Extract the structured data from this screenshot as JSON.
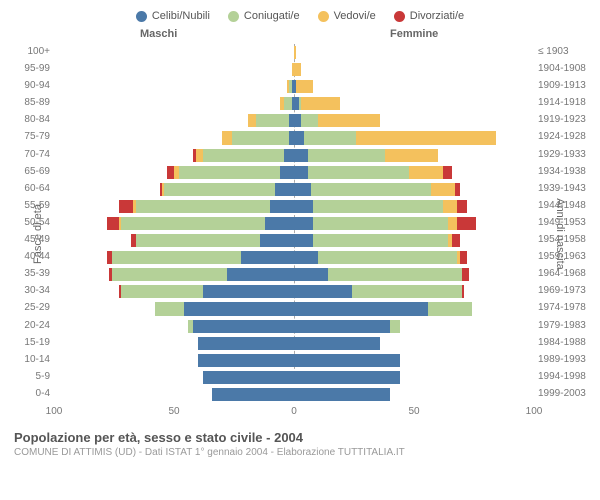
{
  "legend": {
    "items": [
      {
        "label": "Celibi/Nubili",
        "color": "#4b79a8"
      },
      {
        "label": "Coniugati/e",
        "color": "#b4d198"
      },
      {
        "label": "Vedovi/e",
        "color": "#f4c15d"
      },
      {
        "label": "Divorziati/e",
        "color": "#c93838"
      }
    ]
  },
  "headers": {
    "male": "Maschi",
    "female": "Femmine"
  },
  "axis": {
    "left_label": "Fasce di età",
    "right_label": "Anni di nascita",
    "xmax": 100,
    "xticks": [
      100,
      50,
      0,
      50,
      100
    ]
  },
  "colors": {
    "single": "#4b79a8",
    "married": "#b4d198",
    "widowed": "#f4c15d",
    "divorced": "#c93838",
    "grid": "#ffffff",
    "centerline": "#aaaaaa",
    "text": "#777777",
    "bg": "#ffffff"
  },
  "footer": {
    "title": "Popolazione per età, sesso e stato civile - 2004",
    "subtitle": "COMUNE DI ATTIMIS (UD) - Dati ISTAT 1° gennaio 2004 - Elaborazione TUTTITALIA.IT"
  },
  "rows": [
    {
      "age": "100+",
      "birth": "≤ 1903",
      "m": {
        "s": 0,
        "c": 0,
        "w": 0,
        "d": 0
      },
      "f": {
        "s": 0,
        "c": 0,
        "w": 1,
        "d": 0
      }
    },
    {
      "age": "95-99",
      "birth": "1904-1908",
      "m": {
        "s": 0,
        "c": 0,
        "w": 1,
        "d": 0
      },
      "f": {
        "s": 0,
        "c": 0,
        "w": 3,
        "d": 0
      }
    },
    {
      "age": "90-94",
      "birth": "1909-1913",
      "m": {
        "s": 1,
        "c": 1,
        "w": 1,
        "d": 0
      },
      "f": {
        "s": 1,
        "c": 0,
        "w": 7,
        "d": 0
      }
    },
    {
      "age": "85-89",
      "birth": "1914-1918",
      "m": {
        "s": 1,
        "c": 3,
        "w": 2,
        "d": 0
      },
      "f": {
        "s": 2,
        "c": 1,
        "w": 16,
        "d": 0
      }
    },
    {
      "age": "80-84",
      "birth": "1919-1923",
      "m": {
        "s": 2,
        "c": 14,
        "w": 3,
        "d": 0
      },
      "f": {
        "s": 3,
        "c": 7,
        "w": 26,
        "d": 0
      }
    },
    {
      "age": "75-79",
      "birth": "1924-1928",
      "m": {
        "s": 2,
        "c": 24,
        "w": 4,
        "d": 0
      },
      "f": {
        "s": 4,
        "c": 22,
        "w": 58,
        "d": 0
      }
    },
    {
      "age": "70-74",
      "birth": "1929-1933",
      "m": {
        "s": 4,
        "c": 34,
        "w": 3,
        "d": 1
      },
      "f": {
        "s": 6,
        "c": 32,
        "w": 22,
        "d": 0
      }
    },
    {
      "age": "65-69",
      "birth": "1934-1938",
      "m": {
        "s": 6,
        "c": 42,
        "w": 2,
        "d": 3
      },
      "f": {
        "s": 6,
        "c": 42,
        "w": 14,
        "d": 4
      }
    },
    {
      "age": "60-64",
      "birth": "1939-1943",
      "m": {
        "s": 8,
        "c": 46,
        "w": 1,
        "d": 1
      },
      "f": {
        "s": 7,
        "c": 50,
        "w": 10,
        "d": 2
      }
    },
    {
      "age": "55-59",
      "birth": "1944-1948",
      "m": {
        "s": 10,
        "c": 56,
        "w": 1,
        "d": 6
      },
      "f": {
        "s": 8,
        "c": 54,
        "w": 6,
        "d": 4
      }
    },
    {
      "age": "50-54",
      "birth": "1949-1953",
      "m": {
        "s": 12,
        "c": 60,
        "w": 1,
        "d": 5
      },
      "f": {
        "s": 8,
        "c": 56,
        "w": 4,
        "d": 8
      }
    },
    {
      "age": "45-49",
      "birth": "1954-1958",
      "m": {
        "s": 14,
        "c": 52,
        "w": 0,
        "d": 2
      },
      "f": {
        "s": 8,
        "c": 56,
        "w": 2,
        "d": 3
      }
    },
    {
      "age": "40-44",
      "birth": "1959-1963",
      "m": {
        "s": 22,
        "c": 54,
        "w": 0,
        "d": 2
      },
      "f": {
        "s": 10,
        "c": 58,
        "w": 1,
        "d": 3
      }
    },
    {
      "age": "35-39",
      "birth": "1964-1968",
      "m": {
        "s": 28,
        "c": 48,
        "w": 0,
        "d": 1
      },
      "f": {
        "s": 14,
        "c": 56,
        "w": 0,
        "d": 3
      }
    },
    {
      "age": "30-34",
      "birth": "1969-1973",
      "m": {
        "s": 38,
        "c": 34,
        "w": 0,
        "d": 1
      },
      "f": {
        "s": 24,
        "c": 46,
        "w": 0,
        "d": 1
      }
    },
    {
      "age": "25-29",
      "birth": "1974-1978",
      "m": {
        "s": 46,
        "c": 12,
        "w": 0,
        "d": 0
      },
      "f": {
        "s": 56,
        "c": 18,
        "w": 0,
        "d": 0
      }
    },
    {
      "age": "20-24",
      "birth": "1979-1983",
      "m": {
        "s": 42,
        "c": 2,
        "w": 0,
        "d": 0
      },
      "f": {
        "s": 40,
        "c": 4,
        "w": 0,
        "d": 0
      }
    },
    {
      "age": "15-19",
      "birth": "1984-1988",
      "m": {
        "s": 40,
        "c": 0,
        "w": 0,
        "d": 0
      },
      "f": {
        "s": 36,
        "c": 0,
        "w": 0,
        "d": 0
      }
    },
    {
      "age": "10-14",
      "birth": "1989-1993",
      "m": {
        "s": 40,
        "c": 0,
        "w": 0,
        "d": 0
      },
      "f": {
        "s": 44,
        "c": 0,
        "w": 0,
        "d": 0
      }
    },
    {
      "age": "5-9",
      "birth": "1994-1998",
      "m": {
        "s": 38,
        "c": 0,
        "w": 0,
        "d": 0
      },
      "f": {
        "s": 44,
        "c": 0,
        "w": 0,
        "d": 0
      }
    },
    {
      "age": "0-4",
      "birth": "1999-2003",
      "m": {
        "s": 34,
        "c": 0,
        "w": 0,
        "d": 0
      },
      "f": {
        "s": 40,
        "c": 0,
        "w": 0,
        "d": 0
      }
    }
  ]
}
